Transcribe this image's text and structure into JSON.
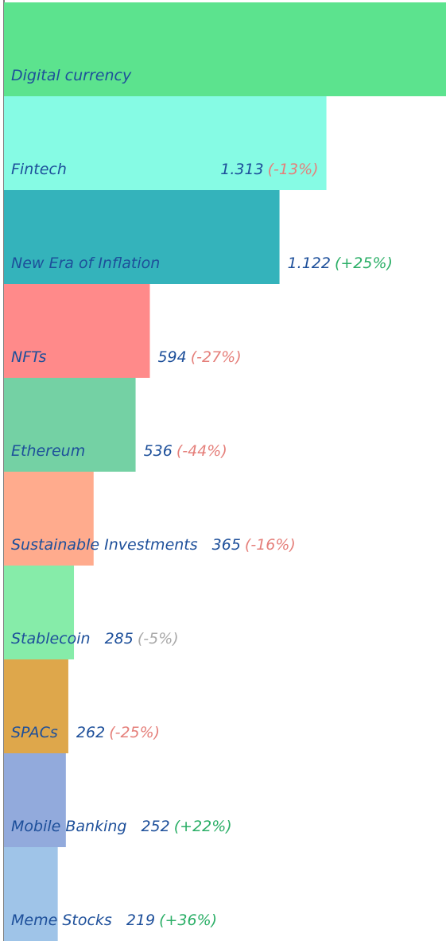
{
  "chart_data": {
    "type": "bar",
    "orientation": "horizontal",
    "categories": [
      "Digital currency",
      "Fintech",
      "New Era of Inflation",
      "NFTs",
      "Ethereum",
      "Sustainable Investments",
      "Stablecoin",
      "SPACs",
      "Mobile Banking",
      "Meme Stocks"
    ],
    "values": [
      1800,
      1313,
      1122,
      594,
      536,
      365,
      285,
      262,
      252,
      219
    ],
    "value_labels": [
      null,
      "1.313",
      "1.122",
      "594",
      "536",
      "365",
      "285",
      "262",
      "252",
      "219"
    ],
    "changes": [
      null,
      -13,
      25,
      -27,
      -44,
      -16,
      -5,
      -25,
      22,
      36
    ],
    "change_labels": [
      null,
      "(-13%)",
      "(+25%)",
      "(-27%)",
      "(-44%)",
      "(-16%)",
      "(-5%)",
      "(-25%)",
      "(+22%)",
      "(+36%)"
    ],
    "change_colors": [
      null,
      "#e57f7a",
      "#2aae66",
      "#e57f7a",
      "#e57f7a",
      "#e57f7a",
      "#a9a9a9",
      "#e57f7a",
      "#2aae66",
      "#2aae66"
    ],
    "colors": [
      "#5ce38e",
      "#86fbe4",
      "#34b3bb",
      "#ff8a8a",
      "#74d1a4",
      "#ffab8d",
      "#86eca9",
      "#dea74b",
      "#92aadc",
      "#9fc4e8"
    ],
    "xlim": [
      0,
      1800
    ]
  }
}
